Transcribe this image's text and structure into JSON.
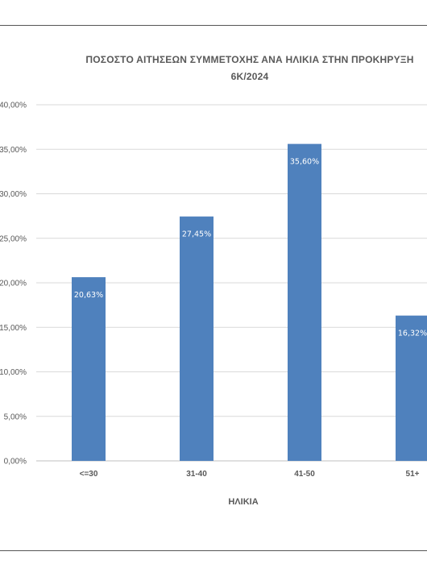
{
  "chart_data": {
    "type": "bar",
    "title_line1": "ΠΟΣΟΣΤΟ ΑΙΤΗΣΕΩΝ ΣΥΜΜΕΤΟΧΗΣ ΑΝΑ ΗΛΙΚΙΑ ΣΤΗΝ ΠΡΟΚΗΡΥΞΗ",
    "title_line2": "6Κ/2024",
    "xlabel": "ΗΛΙΚΙΑ",
    "ylabel": "",
    "categories": [
      "<=30",
      "31-40",
      "41-50",
      "51+"
    ],
    "values": [
      20.63,
      27.45,
      35.6,
      16.32
    ],
    "data_labels": [
      "20,63%",
      "27,45%",
      "35,60%",
      "16,32%"
    ],
    "y_ticks": [
      0,
      5,
      10,
      15,
      20,
      25,
      30,
      35,
      40
    ],
    "y_tick_labels": [
      "0,00%",
      "5,00%",
      "10,00%",
      "15,00%",
      "20,00%",
      "25,00%",
      "30,00%",
      "35,00%",
      "40,00%"
    ],
    "ylim": [
      0,
      40
    ],
    "grid": true,
    "bar_color": "#4F81BD",
    "grid_color": "#D9D9D9"
  }
}
